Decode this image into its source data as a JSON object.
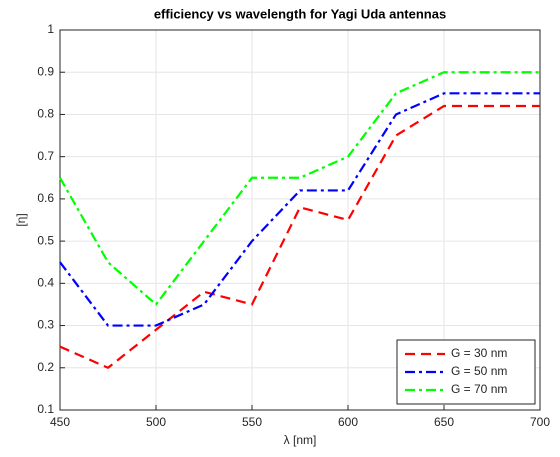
{
  "chart_data": {
    "type": "line",
    "title": "efficiency vs wavelength for Yagi Uda antennas",
    "xlabel": "λ [nm]",
    "ylabel": "[η]",
    "x": [
      450,
      475,
      500,
      525,
      550,
      575,
      600,
      625,
      650,
      675,
      700
    ],
    "series": [
      {
        "name": "G = 30 nm",
        "color": "#ff0000",
        "linestyle": "--",
        "values": [
          0.25,
          0.2,
          0.29,
          0.38,
          0.35,
          0.58,
          0.55,
          0.75,
          0.82,
          0.82,
          0.82
        ]
      },
      {
        "name": "G = 50 nm",
        "color": "#0000ff",
        "linestyle": "-.",
        "values": [
          0.45,
          0.3,
          0.3,
          0.35,
          0.5,
          0.62,
          0.62,
          0.8,
          0.85,
          0.85,
          0.85
        ]
      },
      {
        "name": "G = 70 nm",
        "color": "#00ff00",
        "linestyle": "-.",
        "values": [
          0.65,
          0.45,
          0.35,
          0.5,
          0.65,
          0.65,
          0.7,
          0.85,
          0.9,
          0.9,
          0.9
        ]
      }
    ],
    "xlim": [
      450,
      700
    ],
    "xticks": [
      450,
      500,
      550,
      600,
      650,
      700
    ],
    "ylim": [
      0.1,
      1
    ],
    "yticks": [
      0.1,
      0.2,
      0.3,
      0.4,
      0.5,
      0.6,
      0.7,
      0.8,
      0.9,
      1
    ],
    "grid": true,
    "legend": "lower right"
  }
}
